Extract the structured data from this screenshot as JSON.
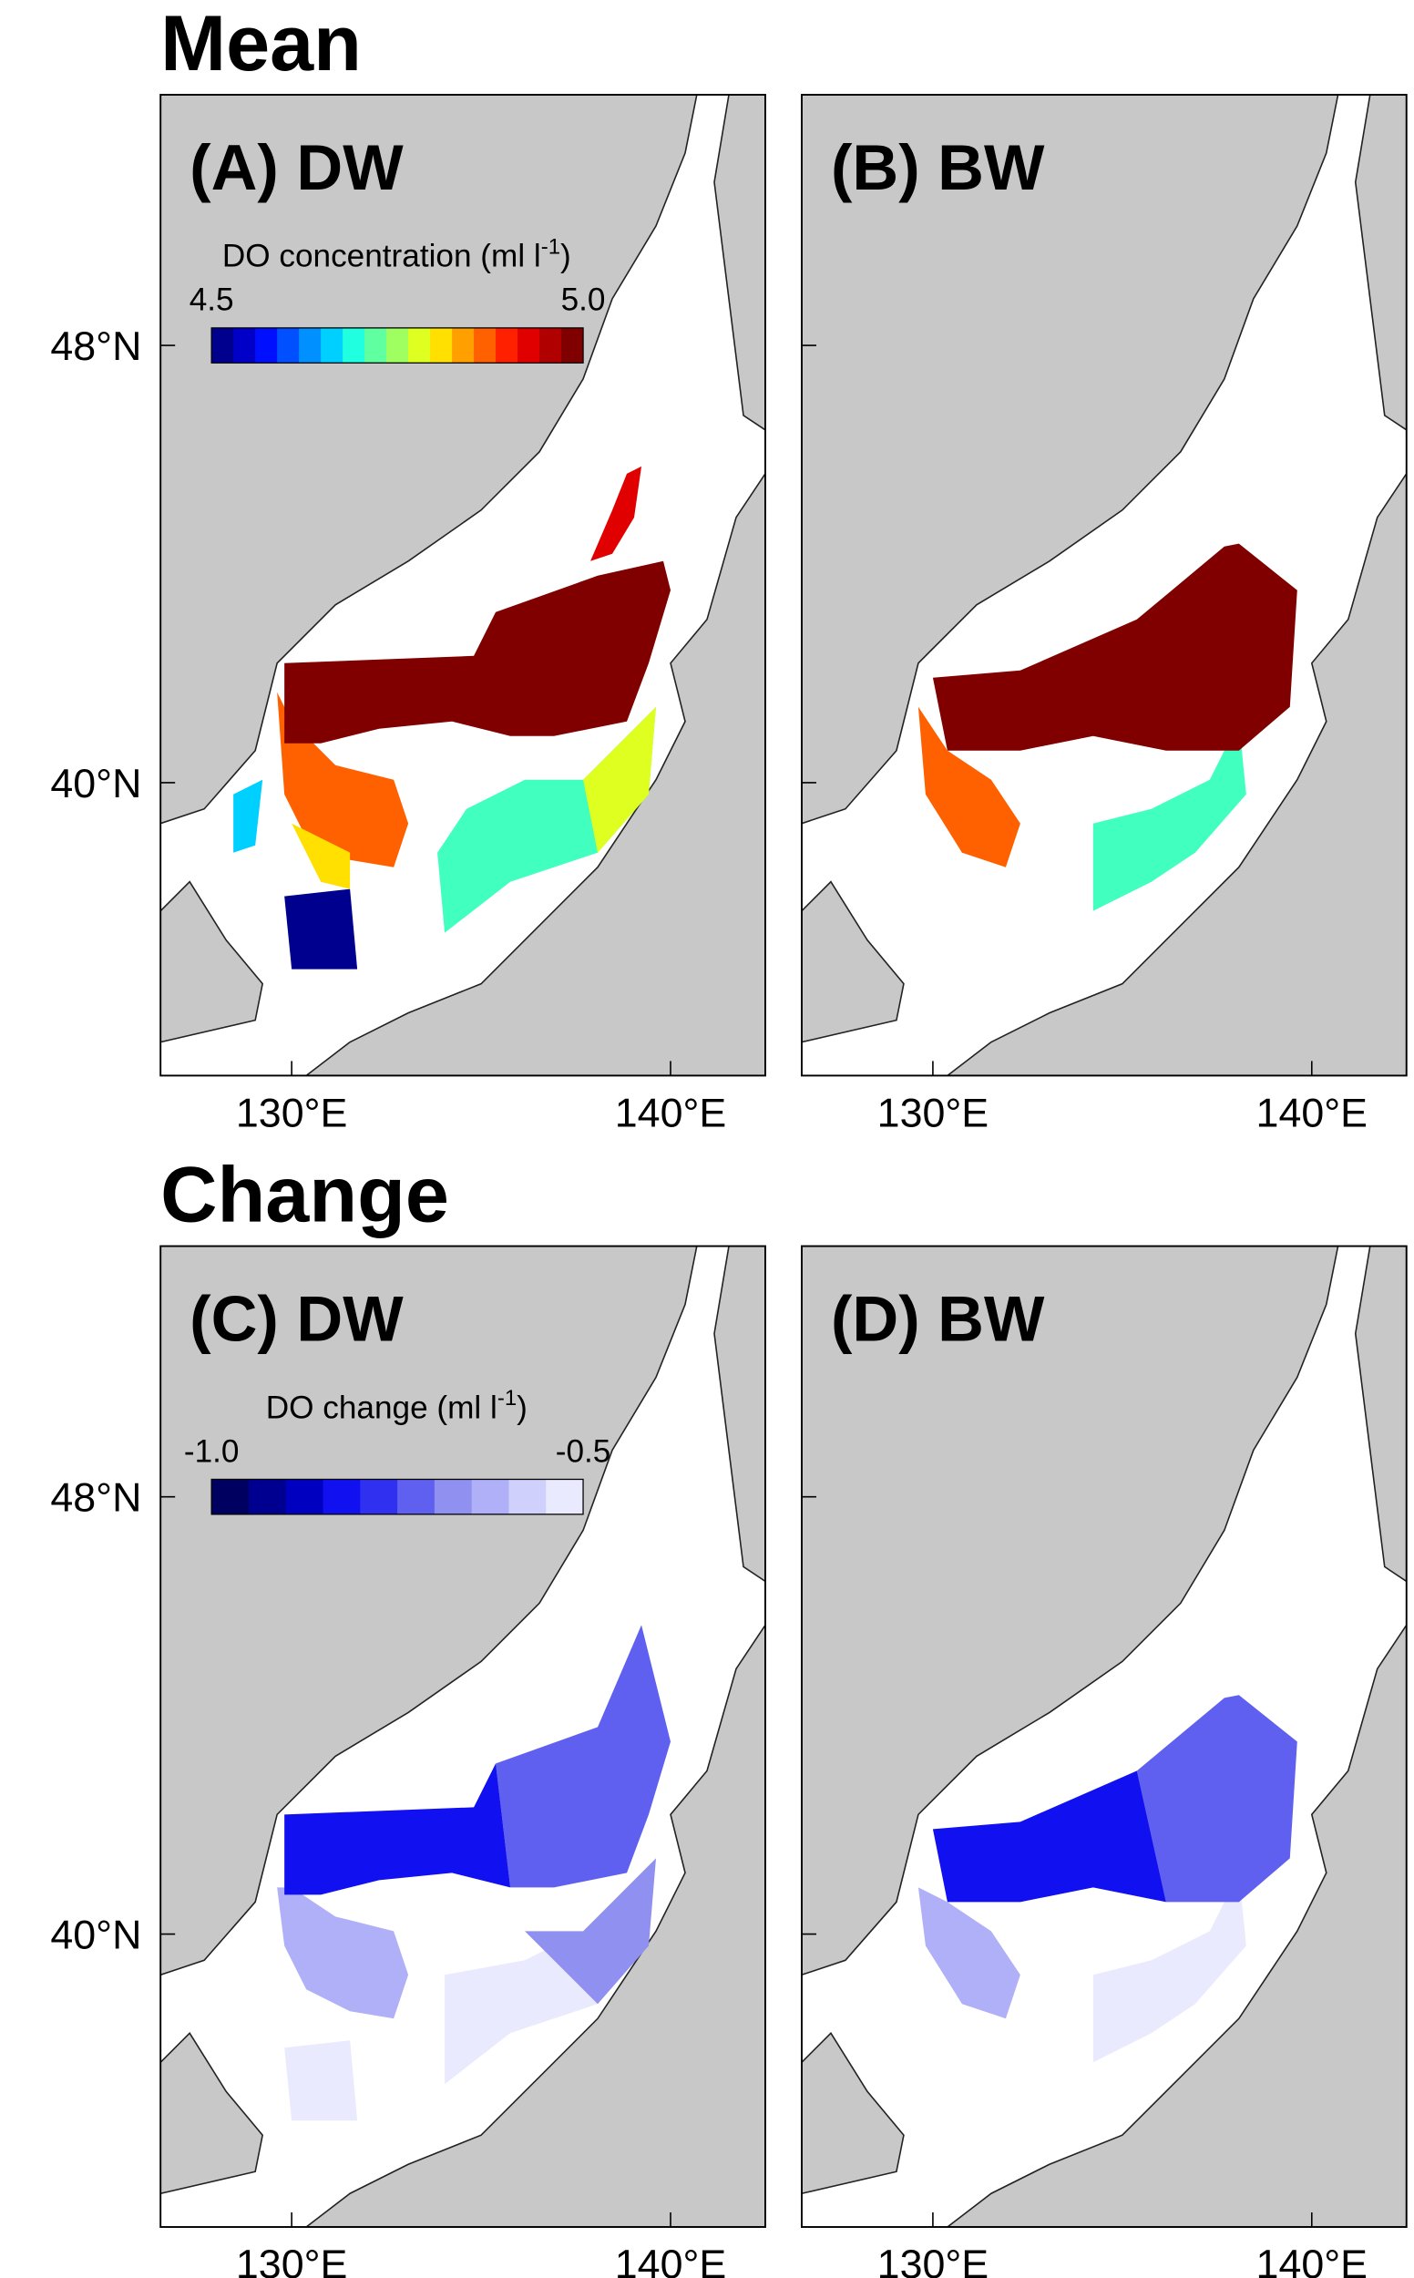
{
  "sections": [
    {
      "title": "Mean",
      "panels": [
        {
          "label": "(A) DW",
          "colorbar": {
            "title": {
              "text": "DO concentration (ml l",
              "sup": "-1",
              "end": ")"
            },
            "min_label": "4.5",
            "max_label": "5.0",
            "colors": [
              "#00008f",
              "#0000c8",
              "#0010ff",
              "#0050ff",
              "#0090ff",
              "#00d0ff",
              "#20ffdf",
              "#60ff9f",
              "#a0ff60",
              "#dfff20",
              "#ffe000",
              "#ffa000",
              "#ff6000",
              "#ff2000",
              "#e00000",
              "#b00000",
              "#800000"
            ]
          },
          "lat_labels": [
            "48°N",
            "40°N"
          ],
          "lon_labels": [
            "130°E",
            "140°E"
          ]
        },
        {
          "label": "(B) BW",
          "lon_labels": [
            "130°E",
            "140°E"
          ]
        }
      ]
    },
    {
      "title": "Change",
      "panels": [
        {
          "label": "(C) DW",
          "colorbar": {
            "title": {
              "text": "DO change (ml l",
              "sup": "-1",
              "end": ")"
            },
            "min_label": "-1.0",
            "max_label": "-0.5",
            "colors": [
              "#000060",
              "#000090",
              "#0000c0",
              "#1010f0",
              "#3030f0",
              "#6060f0",
              "#9090f0",
              "#b0b0f8",
              "#d0d0fc",
              "#eaeafe"
            ]
          },
          "lat_labels": [
            "48°N",
            "40°N"
          ],
          "lon_labels": [
            "130°E",
            "140°E"
          ]
        },
        {
          "label": "(D) BW",
          "lon_labels": [
            "130°E",
            "140°E"
          ]
        }
      ]
    }
  ]
}
